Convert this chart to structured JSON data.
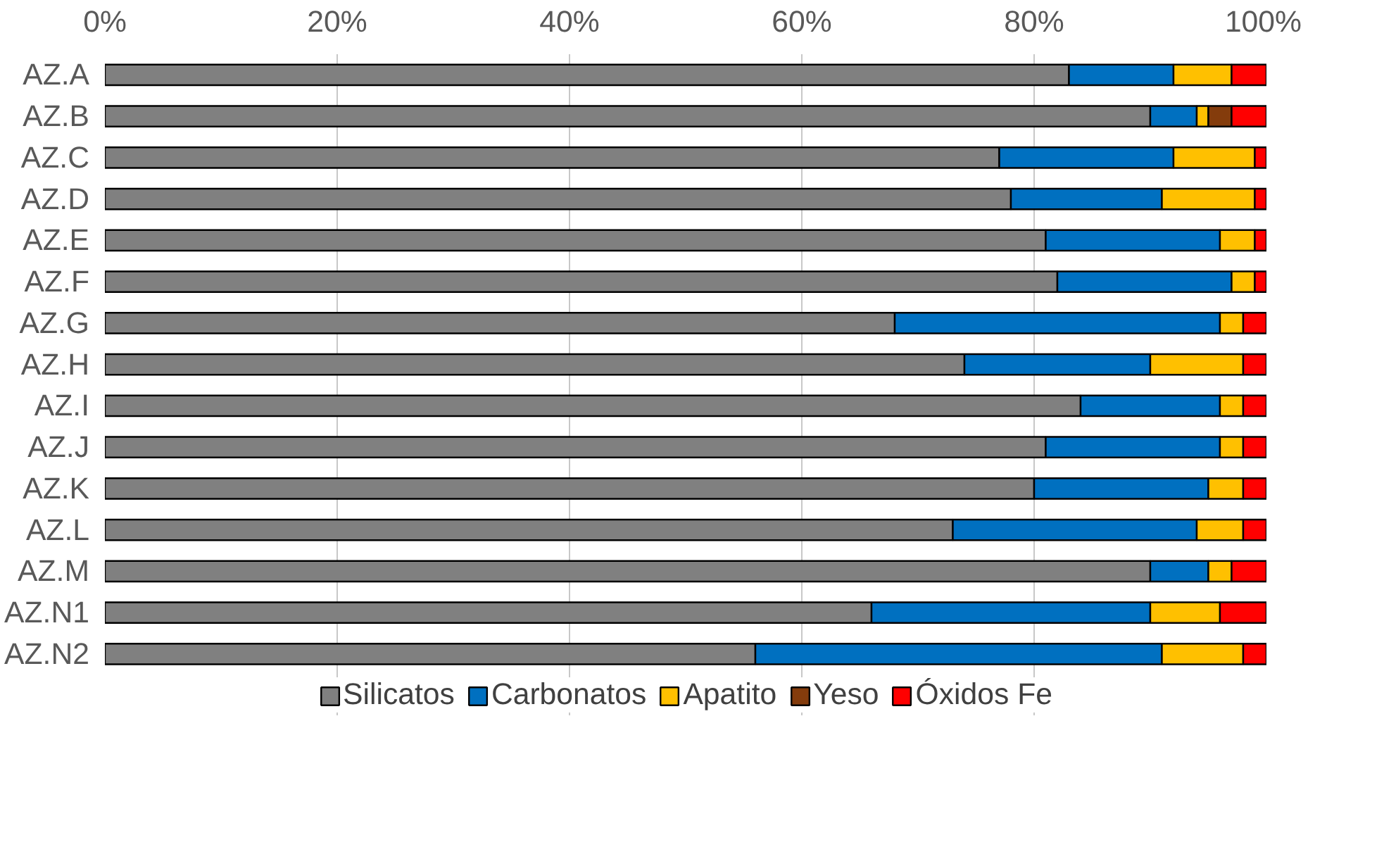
{
  "chart_data": {
    "type": "bar",
    "orientation": "horizontal",
    "stacked": true,
    "categories": [
      "AZ.A",
      "AZ.B",
      "AZ.C",
      "AZ.D",
      "AZ.E",
      "AZ.F",
      "AZ.G",
      "AZ.H",
      "AZ.I",
      "AZ.J",
      "AZ.K",
      "AZ.L",
      "AZ.M",
      "AZ.N1",
      "AZ.N2"
    ],
    "series": [
      {
        "name": "Silicatos",
        "color": "#808080",
        "values": [
          83,
          90,
          77,
          78,
          81,
          82,
          68,
          74,
          84,
          81,
          80,
          73,
          90,
          66,
          56
        ]
      },
      {
        "name": "Carbonatos",
        "color": "#0070c0",
        "values": [
          9,
          4,
          15,
          13,
          15,
          15,
          28,
          16,
          12,
          15,
          15,
          21,
          5,
          24,
          35
        ]
      },
      {
        "name": "Apatito",
        "color": "#ffc000",
        "values": [
          5,
          1,
          7,
          8,
          3,
          2,
          2,
          8,
          2,
          2,
          3,
          4,
          2,
          6,
          7
        ]
      },
      {
        "name": "Yeso",
        "color": "#843c0c",
        "values": [
          0,
          2,
          0,
          0,
          0,
          0,
          0,
          0,
          0,
          0,
          0,
          0,
          0,
          0,
          0
        ]
      },
      {
        "name": "Óxidos Fe",
        "color": "#ff0000",
        "values": [
          3,
          3,
          1,
          1,
          1,
          1,
          2,
          2,
          2,
          2,
          2,
          2,
          3,
          4,
          2
        ]
      }
    ],
    "xlim": [
      0,
      100
    ],
    "xticks": [
      {
        "value": 0,
        "label": "0%"
      },
      {
        "value": 20,
        "label": "20%"
      },
      {
        "value": 40,
        "label": "40%"
      },
      {
        "value": 60,
        "label": "60%"
      },
      {
        "value": 80,
        "label": "80%"
      },
      {
        "value": 100,
        "label": "100%"
      }
    ],
    "grid": "x",
    "legend": "bottom"
  }
}
